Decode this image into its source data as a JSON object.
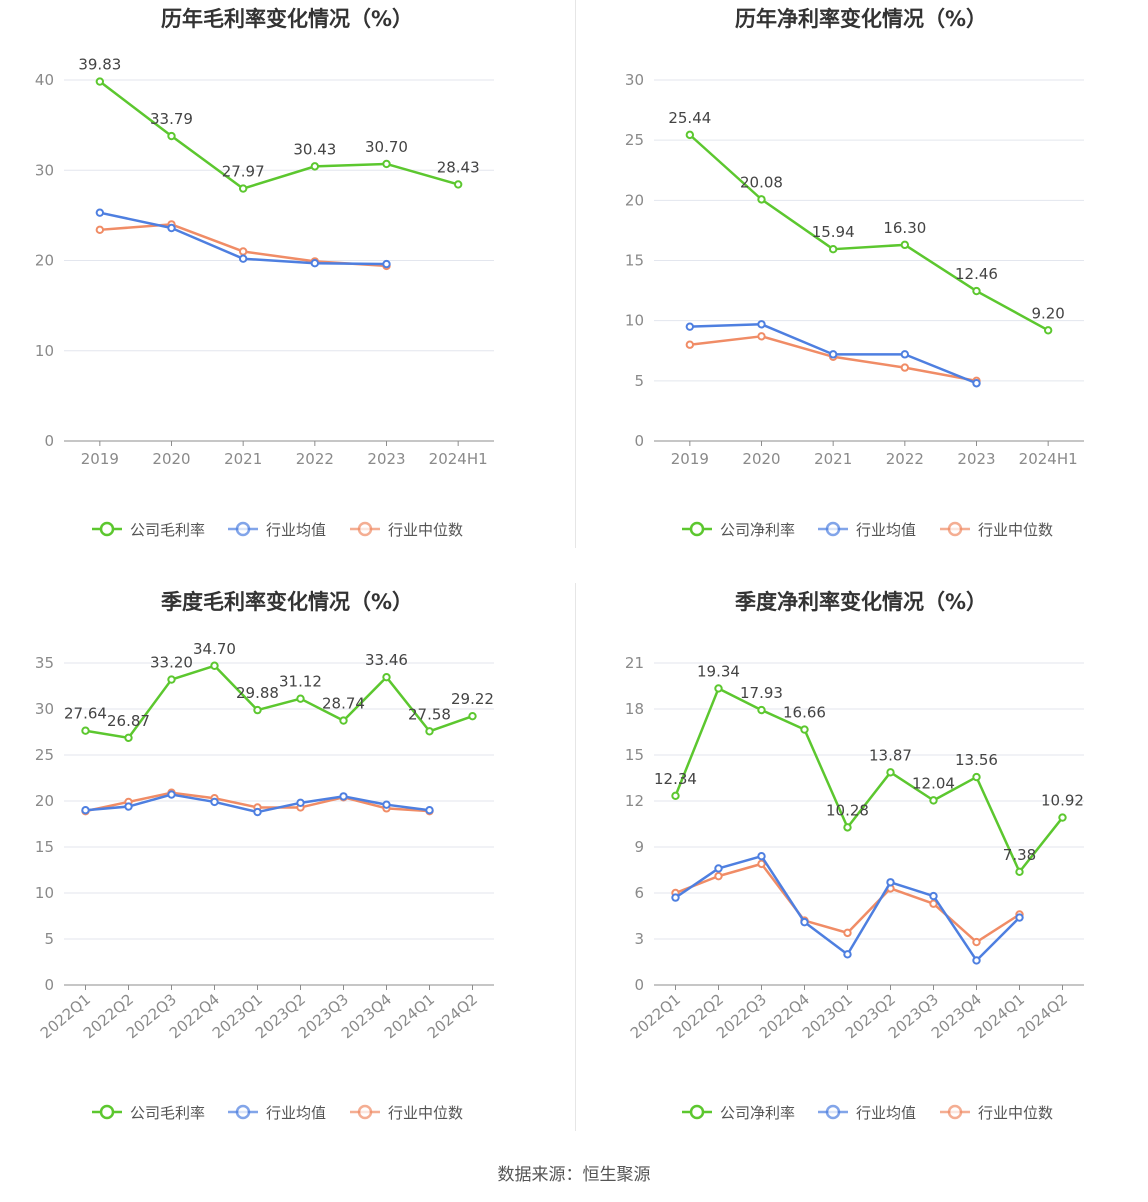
{
  "legend_colors": {
    "company": "#5cc72f",
    "industry_avg": "#4e7fe0",
    "industry_median": "#f08c66"
  },
  "source": "数据来源：恒生聚源",
  "chart_data": [
    {
      "type": "line",
      "title": "历年毛利率变化情况（%）",
      "categories": [
        "2019",
        "2020",
        "2021",
        "2022",
        "2023",
        "2024H1"
      ],
      "ylim": [
        0,
        40
      ],
      "yticks": [
        0,
        10,
        20,
        30,
        40
      ],
      "grid": true,
      "legend": "bottom",
      "series": [
        {
          "name": "公司毛利率",
          "color": "#5cc72f",
          "values": [
            39.83,
            33.79,
            27.97,
            30.43,
            30.7,
            28.43
          ],
          "labels": [
            "39.83",
            "33.79",
            "27.97",
            "30.43",
            "30.70",
            "28.43"
          ]
        },
        {
          "name": "行业均值",
          "color": "#4e7fe0",
          "values": [
            25.3,
            23.6,
            20.2,
            19.7,
            19.6,
            null
          ]
        },
        {
          "name": "行业中位数",
          "color": "#f08c66",
          "values": [
            23.4,
            24.0,
            21.0,
            19.9,
            19.4,
            null
          ]
        }
      ]
    },
    {
      "type": "line",
      "title": "历年净利率变化情况（%）",
      "categories": [
        "2019",
        "2020",
        "2021",
        "2022",
        "2023",
        "2024H1"
      ],
      "ylim": [
        0,
        30
      ],
      "yticks": [
        0,
        5,
        10,
        15,
        20,
        25,
        30
      ],
      "grid": true,
      "legend": "bottom",
      "series": [
        {
          "name": "公司净利率",
          "color": "#5cc72f",
          "values": [
            25.44,
            20.08,
            15.94,
            16.3,
            12.46,
            9.2
          ],
          "labels": [
            "25.44",
            "20.08",
            "15.94",
            "16.30",
            "12.46",
            "9.20"
          ]
        },
        {
          "name": "行业均值",
          "color": "#4e7fe0",
          "values": [
            9.5,
            9.7,
            7.2,
            7.2,
            4.8,
            null
          ]
        },
        {
          "name": "行业中位数",
          "color": "#f08c66",
          "values": [
            8.0,
            8.7,
            7.0,
            6.1,
            5.0,
            null
          ]
        }
      ]
    },
    {
      "type": "line",
      "title": "季度毛利率变化情况（%）",
      "categories": [
        "2022Q1",
        "2022Q2",
        "2022Q3",
        "2022Q4",
        "2023Q1",
        "2023Q2",
        "2023Q3",
        "2023Q4",
        "2024Q1",
        "2024Q2"
      ],
      "ylim": [
        0,
        35
      ],
      "yticks": [
        0,
        5,
        10,
        15,
        20,
        25,
        30,
        35
      ],
      "grid": true,
      "legend": "bottom",
      "series": [
        {
          "name": "公司毛利率",
          "color": "#5cc72f",
          "values": [
            27.64,
            26.87,
            33.2,
            34.7,
            29.88,
            31.12,
            28.74,
            33.46,
            27.58,
            29.22
          ],
          "labels": [
            "27.64",
            "26.87",
            "33.20",
            "34.70",
            "29.88",
            "31.12",
            "28.74",
            "33.46",
            "27.58",
            "29.22"
          ]
        },
        {
          "name": "行业均值",
          "color": "#4e7fe0",
          "values": [
            19.0,
            19.4,
            20.7,
            19.9,
            18.8,
            19.8,
            20.5,
            19.6,
            19.0,
            null
          ]
        },
        {
          "name": "行业中位数",
          "color": "#f08c66",
          "values": [
            18.9,
            19.9,
            20.9,
            20.3,
            19.3,
            19.3,
            20.4,
            19.2,
            18.9,
            null
          ]
        }
      ]
    },
    {
      "type": "line",
      "title": "季度净利率变化情况（%）",
      "categories": [
        "2022Q1",
        "2022Q2",
        "2022Q3",
        "2022Q4",
        "2023Q1",
        "2023Q2",
        "2023Q3",
        "2023Q4",
        "2024Q1",
        "2024Q2"
      ],
      "ylim": [
        0,
        21
      ],
      "yticks": [
        0,
        3,
        6,
        9,
        12,
        15,
        18,
        21
      ],
      "grid": true,
      "legend": "bottom",
      "series": [
        {
          "name": "公司净利率",
          "color": "#5cc72f",
          "values": [
            12.34,
            19.34,
            17.93,
            16.66,
            10.28,
            13.87,
            12.04,
            13.56,
            7.38,
            10.92
          ],
          "labels": [
            "12.34",
            "19.34",
            "17.93",
            "16.66",
            "10.28",
            "13.87",
            "12.04",
            "13.56",
            "7.38",
            "10.92"
          ]
        },
        {
          "name": "行业均值",
          "color": "#4e7fe0",
          "values": [
            5.7,
            7.6,
            8.4,
            4.1,
            2.0,
            6.7,
            5.8,
            1.6,
            4.4,
            null
          ]
        },
        {
          "name": "行业中位数",
          "color": "#f08c66",
          "values": [
            6.0,
            7.1,
            7.9,
            4.2,
            3.4,
            6.3,
            5.3,
            2.8,
            4.6,
            null
          ]
        }
      ]
    }
  ]
}
